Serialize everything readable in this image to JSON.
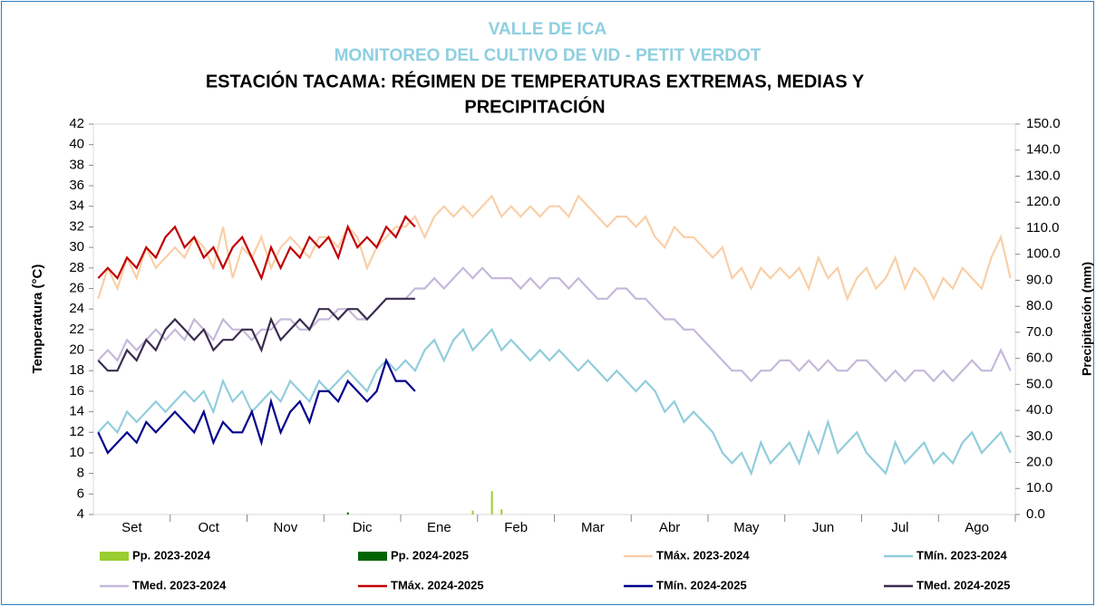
{
  "chart_data": {
    "type": "line",
    "title": "VALLE DE ICA",
    "subtitle": "MONITOREO DEL CULTIVO DE VID - PETIT VERDOT",
    "heading": "ESTACIÓN TACAMA: RÉGIMEN DE TEMPERATURAS EXTREMAS, MEDIAS Y",
    "heading2": "PRECIPITACIÓN",
    "ylabel": "Temperatura (°C)",
    "y2label": "Precipitación (mm)",
    "ylim": [
      4,
      42
    ],
    "yticks": [
      4,
      6,
      8,
      10,
      12,
      14,
      16,
      18,
      20,
      22,
      24,
      26,
      28,
      30,
      32,
      34,
      36,
      38,
      40,
      42
    ],
    "y2lim": [
      0,
      150
    ],
    "y2ticks": [
      {
        "value": 0,
        "label": "0.0"
      },
      {
        "value": 10,
        "label": "10.0"
      },
      {
        "value": 20,
        "label": "20.0"
      },
      {
        "value": 30,
        "label": "30.0"
      },
      {
        "value": 40,
        "label": "40.0"
      },
      {
        "value": 50,
        "label": "50.0"
      },
      {
        "value": 60,
        "label": "60.0"
      },
      {
        "value": 70,
        "label": "70.0"
      },
      {
        "value": 80,
        "label": "80.0"
      },
      {
        "value": 90,
        "label": "90.0"
      },
      {
        "value": 100,
        "label": "100.0"
      },
      {
        "value": 110,
        "label": "110.0"
      },
      {
        "value": 120,
        "label": "120.0"
      },
      {
        "value": 130,
        "label": "130.0"
      },
      {
        "value": 140,
        "label": "140.0"
      },
      {
        "value": 150,
        "label": "150.0"
      }
    ],
    "categories": [
      null,
      null,
      null,
      null,
      "Set",
      null,
      null,
      null,
      null,
      null,
      null,
      null,
      "Oct",
      null,
      null,
      null,
      null,
      null,
      null,
      null,
      "Nov",
      null,
      null,
      null,
      null,
      null,
      null,
      null,
      "Dic",
      null,
      null,
      null,
      null,
      null,
      null,
      null,
      "Ene",
      null,
      null,
      null,
      null,
      null,
      null,
      null,
      "Feb",
      null,
      null,
      null,
      null,
      null,
      null,
      null,
      "Mar",
      null,
      null,
      null,
      null,
      null,
      null,
      null,
      "Abr",
      null,
      null,
      null,
      null,
      null,
      null,
      null,
      "May",
      null,
      null,
      null,
      null,
      null,
      null,
      null,
      "Jun",
      null,
      null,
      null,
      null,
      null,
      null,
      null,
      "Jul",
      null,
      null,
      null,
      null,
      null,
      null,
      null,
      "Ago",
      null,
      null,
      null
    ],
    "series": [
      {
        "name": "Pp. 2023-2024",
        "type": "bar",
        "axis": "y2",
        "color": "#9acd32",
        "values": [
          null,
          null,
          null,
          null,
          null,
          null,
          null,
          null,
          null,
          null,
          null,
          null,
          null,
          null,
          null,
          null,
          null,
          null,
          null,
          null,
          null,
          null,
          null,
          null,
          null,
          null,
          null,
          null,
          null,
          null,
          null,
          null,
          null,
          null,
          null,
          null,
          null,
          null,
          null,
          1.5,
          null,
          9,
          2,
          null,
          null,
          null,
          null,
          null,
          null,
          null,
          null,
          null,
          null,
          null,
          null,
          null,
          null,
          null,
          null,
          null,
          null,
          null,
          null,
          null,
          null,
          null,
          null,
          null,
          null,
          null,
          null,
          null,
          null,
          null,
          null,
          null,
          null,
          null,
          null,
          null,
          null,
          null,
          null,
          null,
          null,
          null,
          null,
          null,
          null,
          null,
          null,
          null,
          null,
          null,
          null,
          null
        ]
      },
      {
        "name": "Pp. 2024-2025",
        "type": "bar",
        "axis": "y2",
        "color": "#006400",
        "values": [
          null,
          null,
          null,
          null,
          null,
          null,
          null,
          null,
          null,
          null,
          null,
          null,
          null,
          null,
          null,
          null,
          null,
          null,
          null,
          null,
          null,
          null,
          null,
          null,
          null,
          null,
          0.8,
          null,
          null,
          null,
          null,
          null,
          null,
          null,
          null,
          null,
          null,
          null,
          null,
          null,
          null,
          null,
          null,
          null,
          null,
          null,
          null,
          null,
          null,
          null,
          null,
          null,
          null,
          null,
          null,
          null,
          null,
          null,
          null,
          null,
          null,
          null,
          null,
          null,
          null,
          null,
          null,
          null,
          null,
          null,
          null,
          null,
          null,
          null,
          null,
          null,
          null,
          null,
          null,
          null,
          null,
          null,
          null,
          null,
          null,
          null,
          null,
          null,
          null,
          null,
          null,
          null,
          null,
          null,
          null,
          null
        ]
      },
      {
        "name": "TMáx. 2023-2024",
        "color": "#f9cfa8",
        "values": [
          25,
          28,
          26,
          29,
          27,
          30,
          28,
          29,
          30,
          29,
          31,
          30,
          28,
          32,
          27,
          30,
          29,
          31,
          28,
          30,
          31,
          30,
          29,
          31,
          31,
          30,
          32,
          31,
          28,
          30,
          31,
          32,
          32,
          33,
          31,
          33,
          34,
          33,
          34,
          33,
          34,
          35,
          33,
          34,
          33,
          34,
          33,
          34,
          34,
          33,
          35,
          34,
          33,
          32,
          33,
          33,
          32,
          33,
          31,
          30,
          32,
          31,
          31,
          30,
          29,
          30,
          27,
          28,
          26,
          28,
          27,
          28,
          27,
          28,
          26,
          29,
          27,
          28,
          25,
          27,
          28,
          26,
          27,
          29,
          26,
          28,
          27,
          25,
          27,
          26,
          28,
          27,
          26,
          29,
          31,
          27
        ]
      },
      {
        "name": "TMín. 2023-2024",
        "color": "#92cddc",
        "values": [
          12,
          13,
          12,
          14,
          13,
          14,
          15,
          14,
          15,
          16,
          15,
          16,
          14,
          17,
          15,
          16,
          14,
          15,
          16,
          15,
          17,
          16,
          15,
          17,
          16,
          17,
          18,
          17,
          16,
          18,
          19,
          18,
          19,
          18,
          20,
          21,
          19,
          21,
          22,
          20,
          21,
          22,
          20,
          21,
          20,
          19,
          20,
          19,
          20,
          19,
          18,
          19,
          18,
          17,
          18,
          17,
          16,
          17,
          16,
          14,
          15,
          13,
          14,
          13,
          12,
          10,
          9,
          10,
          8,
          11,
          9,
          10,
          11,
          9,
          12,
          10,
          13,
          10,
          11,
          12,
          10,
          9,
          8,
          11,
          9,
          10,
          11,
          9,
          10,
          9,
          11,
          12,
          10,
          11,
          12,
          10
        ]
      },
      {
        "name": "TMed. 2023-2024",
        "color": "#c5b9da",
        "values": [
          19,
          20,
          19,
          21,
          20,
          21,
          22,
          21,
          22,
          21,
          23,
          22,
          21,
          23,
          22,
          22,
          21,
          22,
          22,
          23,
          23,
          22,
          22,
          23,
          23,
          24,
          24,
          23,
          23,
          24,
          25,
          25,
          25,
          26,
          26,
          27,
          26,
          27,
          28,
          27,
          28,
          27,
          27,
          27,
          26,
          27,
          26,
          27,
          27,
          26,
          27,
          26,
          25,
          25,
          26,
          26,
          25,
          25,
          24,
          23,
          23,
          22,
          22,
          21,
          20,
          19,
          18,
          18,
          17,
          18,
          18,
          19,
          19,
          18,
          19,
          18,
          19,
          18,
          18,
          19,
          19,
          18,
          17,
          18,
          17,
          18,
          18,
          17,
          18,
          17,
          18,
          19,
          18,
          18,
          20,
          18
        ]
      },
      {
        "name": "TMáx. 2024-2025",
        "color": "#c00000",
        "values": [
          27,
          28,
          27,
          29,
          28,
          30,
          29,
          31,
          32,
          30,
          31,
          29,
          30,
          28,
          30,
          31,
          29,
          27,
          30,
          28,
          30,
          29,
          31,
          30,
          31,
          29,
          32,
          30,
          31,
          30,
          32,
          31,
          33,
          32,
          null,
          null,
          null,
          null,
          null,
          null,
          null,
          null,
          null,
          null,
          null,
          null,
          null,
          null,
          null,
          null,
          null,
          null,
          null,
          null,
          null,
          null,
          null,
          null,
          null,
          null,
          null,
          null,
          null,
          null,
          null,
          null,
          null,
          null,
          null,
          null,
          null,
          null,
          null,
          null,
          null,
          null,
          null,
          null,
          null,
          null,
          null,
          null,
          null,
          null,
          null,
          null,
          null,
          null,
          null,
          null,
          null,
          null,
          null,
          null,
          null,
          null
        ]
      },
      {
        "name": "TMín. 2024-2025",
        "color": "#00008b",
        "values": [
          12,
          10,
          11,
          12,
          11,
          13,
          12,
          13,
          14,
          13,
          12,
          14,
          11,
          13,
          12,
          12,
          14,
          11,
          15,
          12,
          14,
          15,
          13,
          16,
          16,
          15,
          17,
          16,
          15,
          16,
          19,
          17,
          17,
          16,
          null,
          null,
          null,
          null,
          null,
          null,
          null,
          null,
          null,
          null,
          null,
          null,
          null,
          null,
          null,
          null,
          null,
          null,
          null,
          null,
          null,
          null,
          null,
          null,
          null,
          null,
          null,
          null,
          null,
          null,
          null,
          null,
          null,
          null,
          null,
          null,
          null,
          null,
          null,
          null,
          null,
          null,
          null,
          null,
          null,
          null,
          null,
          null,
          null,
          null,
          null,
          null,
          null,
          null,
          null,
          null,
          null,
          null,
          null,
          null,
          null,
          null
        ]
      },
      {
        "name": "TMed. 2024-2025",
        "color": "#3b2d4f",
        "values": [
          19,
          18,
          18,
          20,
          19,
          21,
          20,
          22,
          23,
          22,
          21,
          22,
          20,
          21,
          21,
          22,
          22,
          20,
          23,
          21,
          22,
          23,
          22,
          24,
          24,
          23,
          24,
          24,
          23,
          24,
          25,
          25,
          25,
          25,
          null,
          null,
          null,
          null,
          null,
          null,
          null,
          null,
          null,
          null,
          null,
          null,
          null,
          null,
          null,
          null,
          null,
          null,
          null,
          null,
          null,
          null,
          null,
          null,
          null,
          null,
          null,
          null,
          null,
          null,
          null,
          null,
          null,
          null,
          null,
          null,
          null,
          null,
          null,
          null,
          null,
          null,
          null,
          null,
          null,
          null,
          null,
          null,
          null,
          null,
          null,
          null,
          null,
          null,
          null,
          null,
          null,
          null,
          null,
          null,
          null,
          null
        ]
      }
    ]
  }
}
